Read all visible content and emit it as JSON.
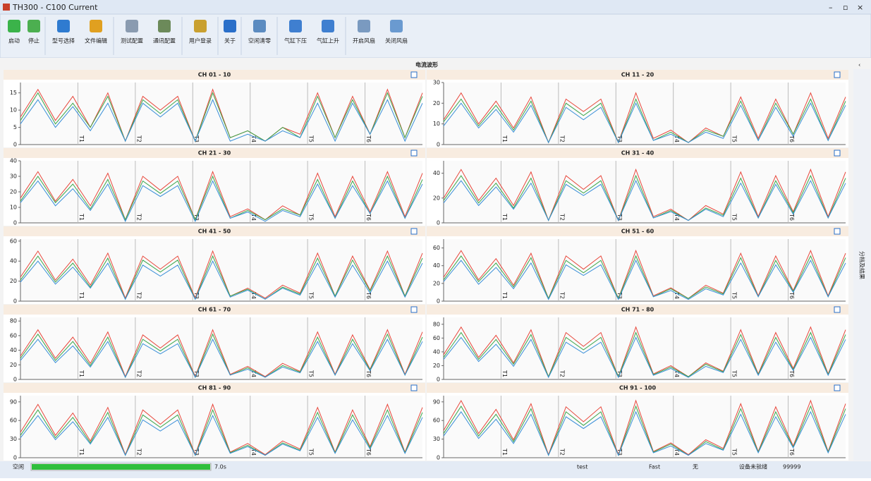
{
  "window": {
    "title": "TH300 - C100 Current"
  },
  "toolbar": {
    "buttons": [
      "启动",
      "停止",
      "型号选择",
      "文件编辑",
      "测试配置",
      "通讯配置",
      "用户登录",
      "关于",
      "空闲清零",
      "气缸下压",
      "气缸上升",
      "开启风扇",
      "关闭风扇"
    ]
  },
  "panel": {
    "title": "电流波形",
    "side_tab": "分档及结果"
  },
  "status": {
    "state": "空闲",
    "time": "7.0s",
    "file": "test",
    "speed": "Fast",
    "user": "无",
    "device": "设备未就绪",
    "count": "99999"
  },
  "chart_data": [
    {
      "type": "line",
      "title": "CH 01 - 10",
      "ylim": [
        0,
        18
      ],
      "yticks": [
        0,
        5,
        10,
        15
      ],
      "sections": [
        "T1",
        "T2",
        "T3",
        "T4",
        "T5",
        "T6"
      ],
      "series": [
        {
          "color": "#e8473b",
          "values": [
            8,
            16,
            7,
            14,
            5,
            15,
            1,
            14,
            10,
            14,
            1,
            16,
            2,
            4,
            1,
            5,
            3,
            15,
            2,
            14,
            3,
            16,
            2,
            15
          ]
        },
        {
          "color": "#3aa64a",
          "values": [
            7,
            15,
            6,
            12,
            5,
            14,
            1,
            13,
            9,
            13,
            1,
            15,
            2,
            4,
            1,
            5,
            2,
            14,
            2,
            13,
            3,
            15,
            2,
            14
          ]
        },
        {
          "color": "#3a8fd8",
          "values": [
            6,
            13,
            5,
            11,
            4,
            12,
            1,
            12,
            8,
            12,
            1,
            13,
            1,
            3,
            1,
            4,
            2,
            12,
            1,
            12,
            3,
            13,
            1,
            12
          ]
        }
      ]
    },
    {
      "type": "line",
      "title": "CH 11 - 20",
      "ylim": [
        0,
        30
      ],
      "yticks": [
        0,
        10,
        20,
        30
      ],
      "sections": [
        "T1",
        "T2",
        "T3",
        "T4",
        "T5",
        "T6"
      ],
      "series": [
        {
          "color": "#e8473b",
          "values": [
            12,
            25,
            10,
            21,
            8,
            23,
            1,
            22,
            16,
            22,
            1,
            25,
            3,
            7,
            1,
            8,
            4,
            23,
            3,
            22,
            5,
            25,
            3,
            23
          ]
        },
        {
          "color": "#3aa64a",
          "values": [
            11,
            22,
            9,
            19,
            7,
            21,
            1,
            20,
            14,
            20,
            1,
            22,
            2,
            6,
            1,
            7,
            4,
            21,
            2,
            20,
            5,
            22,
            2,
            21
          ]
        },
        {
          "color": "#3a8fd8",
          "values": [
            9,
            20,
            8,
            17,
            6,
            19,
            1,
            18,
            12,
            18,
            1,
            20,
            2,
            5,
            1,
            6,
            3,
            19,
            2,
            18,
            4,
            20,
            2,
            19
          ]
        }
      ]
    },
    {
      "type": "line",
      "title": "CH 21 - 30",
      "ylim": [
        0,
        40
      ],
      "yticks": [
        0,
        10,
        20,
        30,
        40
      ],
      "sections": [
        "T1",
        "T2",
        "T3",
        "T4",
        "T5",
        "T6"
      ],
      "series": [
        {
          "color": "#e8473b",
          "values": [
            16,
            33,
            14,
            28,
            11,
            32,
            2,
            30,
            21,
            30,
            2,
            33,
            4,
            9,
            2,
            11,
            5,
            32,
            4,
            30,
            7,
            33,
            4,
            32
          ]
        },
        {
          "color": "#3aa64a",
          "values": [
            14,
            30,
            13,
            25,
            9,
            28,
            2,
            27,
            19,
            27,
            2,
            30,
            3,
            8,
            2,
            9,
            5,
            28,
            3,
            27,
            6,
            30,
            3,
            28
          ]
        },
        {
          "color": "#3a8fd8",
          "values": [
            13,
            27,
            11,
            22,
            8,
            25,
            1,
            24,
            17,
            24,
            1,
            27,
            3,
            7,
            1,
            8,
            4,
            25,
            3,
            24,
            6,
            27,
            3,
            25
          ]
        }
      ]
    },
    {
      "type": "line",
      "title": "CH 31 - 40",
      "ylim": [
        0,
        50
      ],
      "yticks": [
        0,
        20,
        40
      ],
      "sections": [
        "T1",
        "T2",
        "T3",
        "T4",
        "T5",
        "T6"
      ],
      "series": [
        {
          "color": "#e8473b",
          "values": [
            20,
            43,
            18,
            36,
            14,
            41,
            2,
            38,
            27,
            38,
            2,
            43,
            5,
            11,
            2,
            14,
            7,
            41,
            5,
            38,
            9,
            43,
            5,
            41
          ]
        },
        {
          "color": "#3aa64a",
          "values": [
            18,
            38,
            16,
            32,
            12,
            36,
            2,
            34,
            24,
            34,
            2,
            38,
            4,
            10,
            2,
            12,
            6,
            36,
            4,
            34,
            8,
            38,
            4,
            36
          ]
        },
        {
          "color": "#3a8fd8",
          "values": [
            16,
            34,
            14,
            29,
            11,
            32,
            2,
            31,
            22,
            31,
            2,
            34,
            4,
            9,
            2,
            11,
            5,
            32,
            4,
            31,
            7,
            34,
            4,
            32
          ]
        }
      ]
    },
    {
      "type": "line",
      "title": "CH 41 - 50",
      "ylim": [
        0,
        62
      ],
      "yticks": [
        0,
        20,
        40,
        60
      ],
      "sections": [
        "T1",
        "T2",
        "T3",
        "T4",
        "T5",
        "T6"
      ],
      "series": [
        {
          "color": "#e8473b",
          "values": [
            24,
            50,
            21,
            42,
            16,
            48,
            3,
            45,
            32,
            45,
            3,
            50,
            5,
            13,
            3,
            16,
            8,
            48,
            5,
            45,
            11,
            50,
            5,
            48
          ]
        },
        {
          "color": "#3aa64a",
          "values": [
            21,
            45,
            19,
            38,
            14,
            43,
            2,
            41,
            29,
            41,
            2,
            45,
            5,
            12,
            2,
            14,
            7,
            43,
            5,
            41,
            10,
            45,
            5,
            43
          ]
        },
        {
          "color": "#3a8fd8",
          "values": [
            19,
            40,
            17,
            34,
            13,
            38,
            2,
            36,
            25,
            36,
            2,
            40,
            4,
            11,
            2,
            13,
            6,
            38,
            4,
            36,
            8,
            40,
            4,
            38
          ]
        }
      ]
    },
    {
      "type": "line",
      "title": "CH 51 - 60",
      "ylim": [
        0,
        70
      ],
      "yticks": [
        0,
        20,
        40,
        60
      ],
      "sections": [
        "T1",
        "T2",
        "T3",
        "T4",
        "T5",
        "T6"
      ],
      "series": [
        {
          "color": "#e8473b",
          "values": [
            27,
            57,
            24,
            48,
            18,
            54,
            3,
            51,
            36,
            51,
            3,
            57,
            6,
            15,
            3,
            18,
            9,
            54,
            6,
            51,
            12,
            57,
            6,
            54
          ]
        },
        {
          "color": "#3aa64a",
          "values": [
            24,
            51,
            22,
            43,
            16,
            49,
            3,
            46,
            32,
            46,
            3,
            51,
            5,
            14,
            3,
            16,
            8,
            49,
            5,
            46,
            11,
            51,
            5,
            49
          ]
        },
        {
          "color": "#3a8fd8",
          "values": [
            22,
            46,
            19,
            38,
            14,
            43,
            2,
            41,
            29,
            41,
            2,
            46,
            5,
            12,
            2,
            14,
            7,
            43,
            5,
            41,
            10,
            46,
            5,
            43
          ]
        }
      ]
    },
    {
      "type": "line",
      "title": "CH 61 - 70",
      "ylim": [
        0,
        85
      ],
      "yticks": [
        0,
        20,
        40,
        60,
        80
      ],
      "sections": [
        "T1",
        "T2",
        "T3",
        "T4",
        "T5",
        "T6"
      ],
      "series": [
        {
          "color": "#e8473b",
          "values": [
            32,
            68,
            29,
            58,
            22,
            65,
            4,
            61,
            43,
            61,
            4,
            68,
            7,
            18,
            4,
            22,
            11,
            65,
            7,
            61,
            14,
            68,
            7,
            65
          ]
        },
        {
          "color": "#3aa64a",
          "values": [
            29,
            62,
            26,
            52,
            19,
            58,
            3,
            55,
            39,
            55,
            3,
            62,
            6,
            16,
            3,
            19,
            10,
            58,
            6,
            55,
            13,
            62,
            6,
            58
          ]
        },
        {
          "color": "#3a8fd8",
          "values": [
            26,
            55,
            23,
            46,
            17,
            52,
            3,
            49,
            35,
            49,
            3,
            55,
            6,
            14,
            3,
            17,
            9,
            52,
            6,
            49,
            12,
            55,
            6,
            52
          ]
        }
      ]
    },
    {
      "type": "line",
      "title": "CH 71 - 80",
      "ylim": [
        0,
        90
      ],
      "yticks": [
        0,
        20,
        40,
        60,
        80
      ],
      "sections": [
        "T1",
        "T2",
        "T3",
        "T4",
        "T5",
        "T6"
      ],
      "series": [
        {
          "color": "#e8473b",
          "values": [
            36,
            76,
            32,
            64,
            24,
            72,
            4,
            68,
            48,
            68,
            4,
            76,
            8,
            20,
            4,
            24,
            12,
            72,
            8,
            68,
            16,
            76,
            8,
            72
          ]
        },
        {
          "color": "#3aa64a",
          "values": [
            32,
            68,
            29,
            58,
            22,
            65,
            4,
            61,
            43,
            61,
            4,
            68,
            7,
            18,
            4,
            22,
            11,
            65,
            7,
            61,
            14,
            68,
            7,
            65
          ]
        },
        {
          "color": "#3a8fd8",
          "values": [
            29,
            61,
            26,
            51,
            19,
            58,
            3,
            54,
            38,
            54,
            3,
            61,
            6,
            16,
            3,
            19,
            10,
            58,
            6,
            54,
            13,
            61,
            6,
            58
          ]
        }
      ]
    },
    {
      "type": "line",
      "title": "CH 81 - 90",
      "ylim": [
        0,
        100
      ],
      "yticks": [
        0,
        30,
        60,
        90
      ],
      "sections": [
        "T1",
        "T2",
        "T3",
        "T4",
        "T5",
        "T6"
      ],
      "series": [
        {
          "color": "#e8473b",
          "values": [
            41,
            86,
            36,
            72,
            27,
            81,
            5,
            77,
            54,
            77,
            5,
            86,
            9,
            23,
            5,
            27,
            14,
            81,
            9,
            77,
            18,
            86,
            9,
            81
          ]
        },
        {
          "color": "#3aa64a",
          "values": [
            36,
            77,
            32,
            65,
            24,
            73,
            4,
            69,
            49,
            69,
            4,
            77,
            8,
            20,
            4,
            24,
            12,
            73,
            8,
            69,
            16,
            77,
            8,
            73
          ]
        },
        {
          "color": "#3a8fd8",
          "values": [
            32,
            68,
            29,
            58,
            22,
            65,
            4,
            61,
            43,
            61,
            4,
            68,
            7,
            18,
            4,
            22,
            11,
            65,
            7,
            61,
            14,
            68,
            7,
            65
          ]
        }
      ]
    },
    {
      "type": "line",
      "title": "CH 91 - 100",
      "ylim": [
        0,
        100
      ],
      "yticks": [
        0,
        30,
        60,
        90
      ],
      "sections": [
        "T1",
        "T2",
        "T3",
        "T4",
        "T5",
        "T6"
      ],
      "series": [
        {
          "color": "#e8473b",
          "values": [
            44,
            92,
            39,
            78,
            29,
            87,
            5,
            82,
            58,
            82,
            5,
            92,
            10,
            24,
            5,
            29,
            15,
            87,
            10,
            82,
            19,
            92,
            10,
            87
          ]
        },
        {
          "color": "#3aa64a",
          "values": [
            39,
            83,
            35,
            70,
            26,
            79,
            4,
            74,
            52,
            74,
            4,
            83,
            9,
            22,
            4,
            26,
            13,
            79,
            9,
            74,
            17,
            83,
            9,
            79
          ]
        },
        {
          "color": "#3a8fd8",
          "values": [
            35,
            74,
            31,
            62,
            23,
            70,
            4,
            66,
            47,
            66,
            4,
            74,
            8,
            19,
            4,
            23,
            12,
            70,
            8,
            66,
            16,
            74,
            8,
            70
          ]
        }
      ]
    }
  ]
}
